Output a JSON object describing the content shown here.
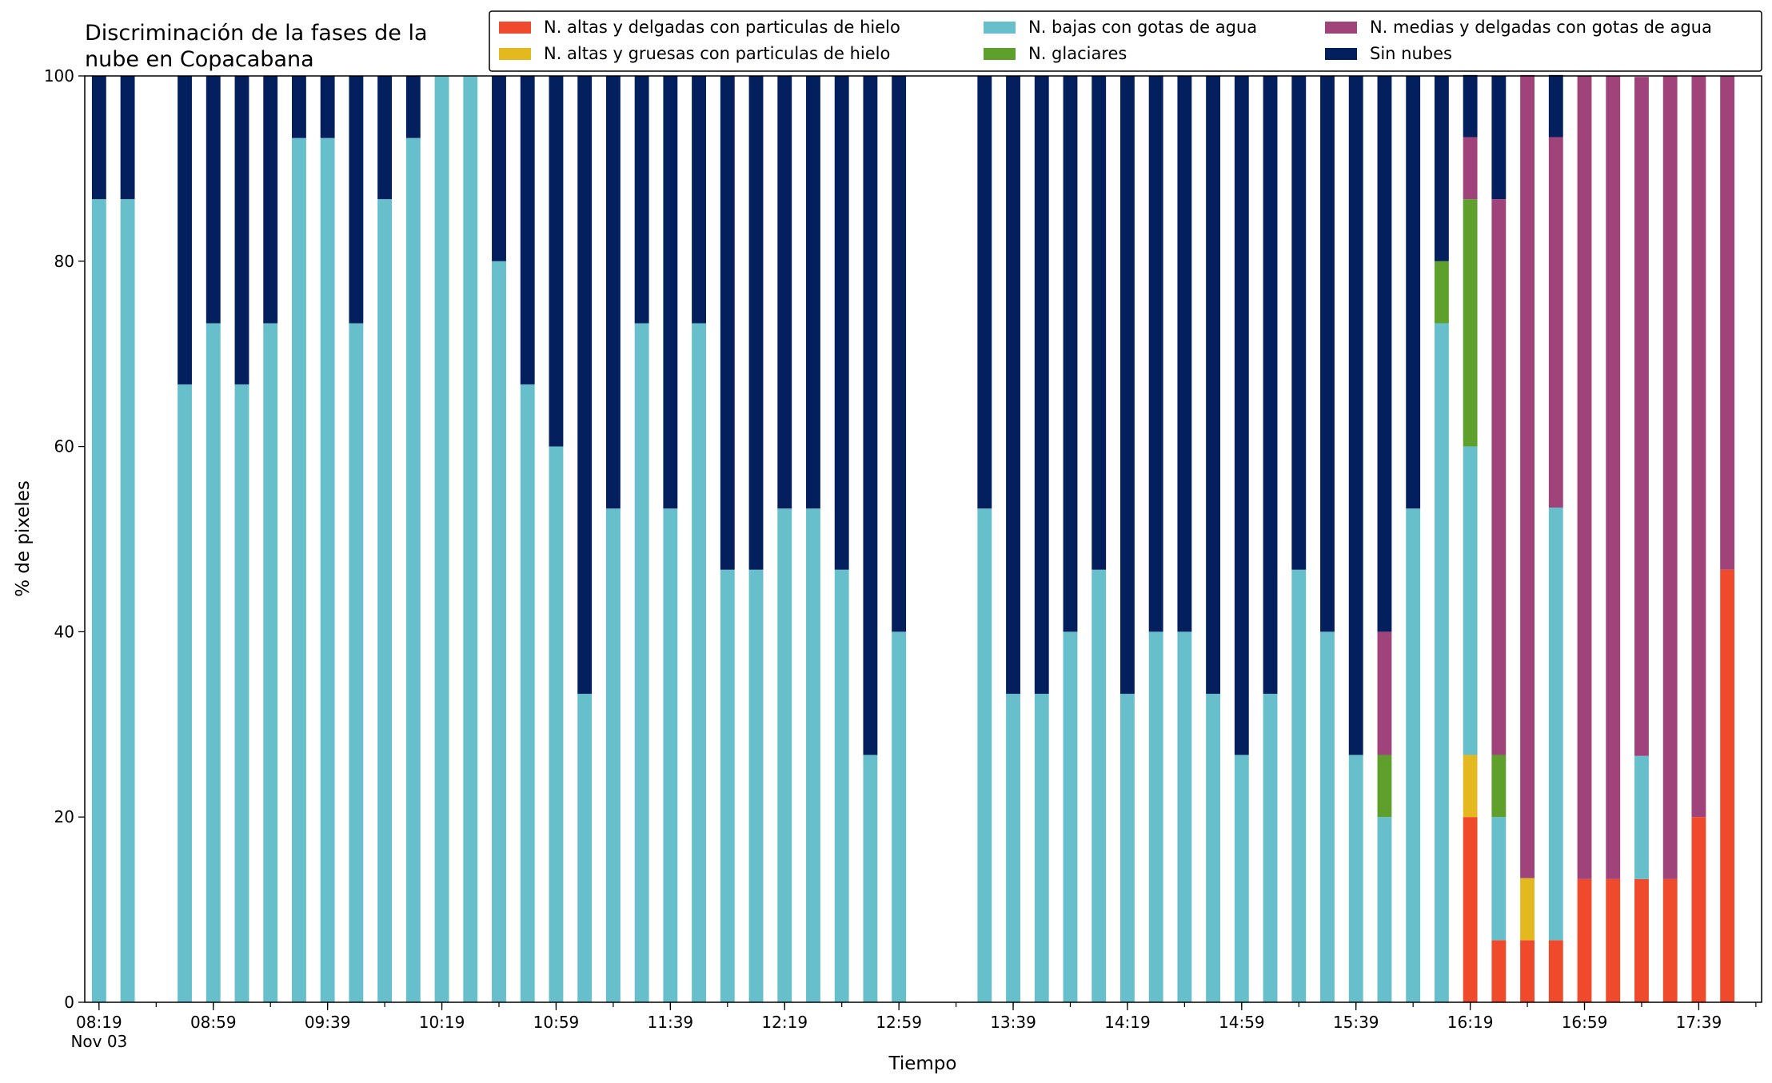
{
  "chart_data": {
    "type": "stacked_bar",
    "title": [
      "Discriminación de la fases de la",
      "nube en Copacabana"
    ],
    "xlabel": "Tiempo",
    "ylabel": "% de pixeles",
    "x_date_label": "Nov 03",
    "categories": [
      "08:19",
      "08:29",
      "08:39",
      "08:49",
      "08:59",
      "09:09",
      "09:19",
      "09:29",
      "09:39",
      "09:49",
      "09:59",
      "10:09",
      "10:19",
      "10:29",
      "10:39",
      "10:49",
      "10:59",
      "11:09",
      "11:19",
      "11:29",
      "11:39",
      "11:49",
      "11:59",
      "12:09",
      "12:19",
      "12:29",
      "12:39",
      "12:49",
      "12:59",
      "13:09",
      "13:19",
      "13:29",
      "13:39",
      "13:49",
      "13:59",
      "14:09",
      "14:19",
      "14:29",
      "14:39",
      "14:49",
      "14:59",
      "15:09",
      "15:19",
      "15:29",
      "15:39",
      "15:49",
      "15:59",
      "16:09",
      "16:19",
      "16:29",
      "16:39",
      "16:49",
      "16:59",
      "17:09",
      "17:19",
      "17:29",
      "17:39",
      "17:49",
      "17:59"
    ],
    "xticks": [
      "08:19",
      "08:59",
      "09:39",
      "10:19",
      "10:59",
      "11:39",
      "12:19",
      "12:59",
      "13:39",
      "14:19",
      "14:59",
      "15:39",
      "16:19",
      "16:59",
      "17:39"
    ],
    "ylim": [
      0,
      100
    ],
    "yticks": [
      0,
      20,
      40,
      60,
      80,
      100
    ],
    "series": [
      {
        "name": "N. altas y delgadas con particulas de hielo",
        "color": "#ef4a2b",
        "values": [
          0,
          0,
          null,
          0,
          0,
          0,
          0,
          0,
          0,
          0,
          0,
          0,
          0,
          0,
          0,
          0,
          0,
          0,
          0,
          0,
          0,
          0,
          0,
          0,
          0,
          0,
          0,
          0,
          0,
          null,
          null,
          0,
          0,
          0,
          0,
          0,
          0,
          0,
          0,
          0,
          0,
          0,
          0,
          0,
          0,
          0,
          0,
          0,
          20,
          6.7,
          6.7,
          6.7,
          13.3,
          13.3,
          13.3,
          13.3,
          20,
          46.7,
          null
        ]
      },
      {
        "name": "N. altas y gruesas con particulas de hielo",
        "color": "#e4b81f",
        "values": [
          0,
          0,
          null,
          0,
          0,
          0,
          0,
          0,
          0,
          0,
          0,
          0,
          0,
          0,
          0,
          0,
          0,
          0,
          0,
          0,
          0,
          0,
          0,
          0,
          0,
          0,
          0,
          0,
          0,
          null,
          null,
          0,
          0,
          0,
          0,
          0,
          0,
          0,
          0,
          0,
          0,
          0,
          0,
          0,
          0,
          0,
          0,
          0,
          6.7,
          0,
          6.7,
          0,
          0,
          0,
          0,
          0,
          0,
          0,
          null
        ]
      },
      {
        "name": "N. bajas con gotas de agua",
        "color": "#66bfca",
        "values": [
          86.7,
          86.7,
          null,
          66.7,
          73.3,
          66.7,
          73.3,
          93.3,
          93.3,
          73.3,
          86.7,
          93.3,
          100,
          100,
          80,
          66.7,
          60,
          33.3,
          53.3,
          73.3,
          53.3,
          73.3,
          46.7,
          46.7,
          53.3,
          53.3,
          46.7,
          26.7,
          40,
          null,
          null,
          53.3,
          33.3,
          33.3,
          40,
          46.7,
          33.3,
          40,
          40,
          33.3,
          26.7,
          33.3,
          46.7,
          40,
          26.7,
          20,
          53.3,
          73.3,
          33.3,
          13.3,
          0,
          46.7,
          0,
          0,
          13.3,
          0,
          0,
          0,
          null
        ]
      },
      {
        "name": "N. glaciares",
        "color": "#5fa02d",
        "values": [
          0,
          0,
          null,
          0,
          0,
          0,
          0,
          0,
          0,
          0,
          0,
          0,
          0,
          0,
          0,
          0,
          0,
          0,
          0,
          0,
          0,
          0,
          0,
          0,
          0,
          0,
          0,
          0,
          0,
          null,
          null,
          0,
          0,
          0,
          0,
          0,
          0,
          0,
          0,
          0,
          0,
          0,
          0,
          0,
          0,
          6.7,
          0,
          6.7,
          26.7,
          6.7,
          0,
          0,
          0,
          0,
          0,
          0,
          0,
          0,
          null
        ]
      },
      {
        "name": "N. medias y delgadas con gotas de agua",
        "color": "#a0437a",
        "values": [
          0,
          0,
          null,
          0,
          0,
          0,
          0,
          0,
          0,
          0,
          0,
          0,
          0,
          0,
          0,
          0,
          0,
          0,
          0,
          0,
          0,
          0,
          0,
          0,
          0,
          0,
          0,
          0,
          0,
          null,
          null,
          0,
          0,
          0,
          0,
          0,
          0,
          0,
          0,
          0,
          0,
          0,
          0,
          0,
          0,
          13.3,
          0,
          0,
          6.7,
          60,
          86.7,
          40,
          86.7,
          86.7,
          73.3,
          86.7,
          80,
          53.3,
          null
        ]
      },
      {
        "name": "Sin nubes",
        "color": "#031f5e",
        "values": [
          13.3,
          13.3,
          null,
          33.3,
          26.7,
          33.3,
          26.7,
          6.7,
          6.7,
          26.7,
          13.3,
          6.7,
          0,
          0,
          20,
          33.3,
          40,
          66.7,
          46.7,
          26.7,
          46.7,
          26.7,
          53.3,
          53.3,
          46.7,
          46.7,
          53.3,
          73.3,
          60,
          null,
          null,
          46.7,
          66.7,
          66.7,
          60,
          53.3,
          66.7,
          60,
          60,
          66.7,
          73.3,
          66.7,
          53.3,
          60,
          73.3,
          60,
          46.7,
          20,
          6.7,
          13.3,
          0,
          6.7,
          0,
          0,
          0,
          0,
          0,
          0,
          null
        ]
      }
    ]
  }
}
